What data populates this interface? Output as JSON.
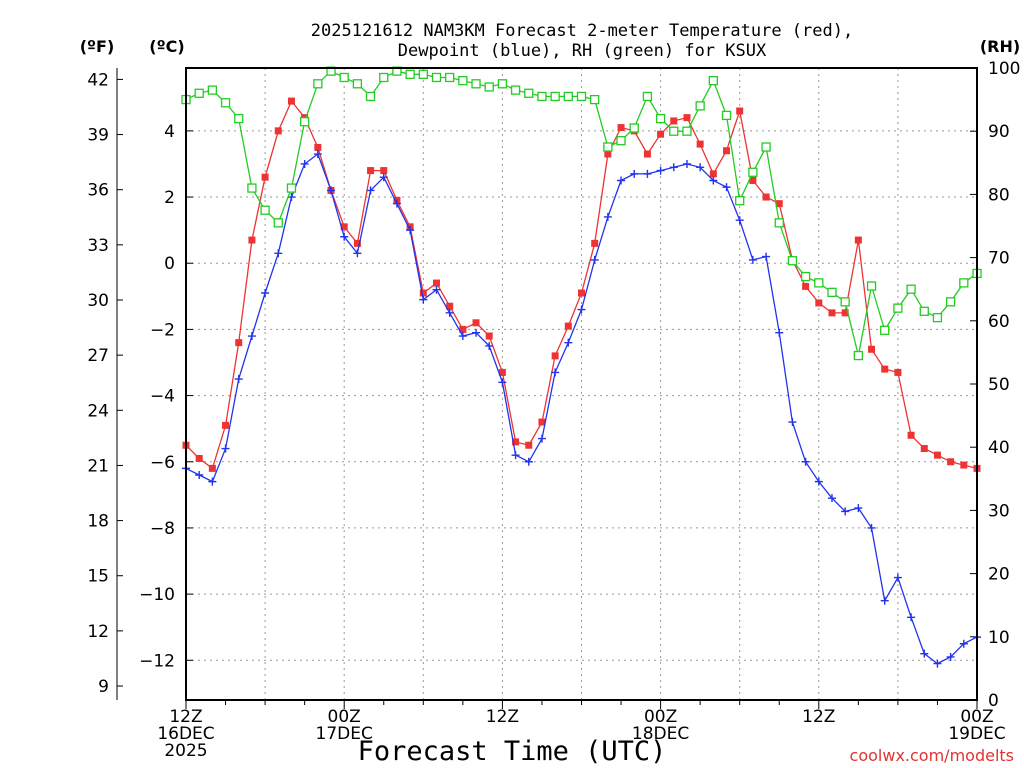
{
  "chart_data": {
    "type": "line",
    "title_line1": "2025121612 NAM3KM Forecast 2-meter Temperature (red),",
    "title_line2": "Dewpoint (blue), RH (green) for KSUX",
    "unit_f": "(ºF)",
    "unit_c": "(ºC)",
    "unit_rh": "(RH)",
    "xlabel": "Forecast Time (UTC)",
    "watermark": "coolwx.com/modelts",
    "x_range_hours": [
      0,
      60
    ],
    "y_celsius_range": [
      -13.2,
      5.9
    ],
    "y_rh_range": [
      0,
      100
    ],
    "x_ticks": [
      {
        "hour": 0,
        "line1": "12Z",
        "line2": "16DEC",
        "line3": "2025"
      },
      {
        "hour": 12,
        "line1": "00Z",
        "line2": "17DEC",
        "line3": ""
      },
      {
        "hour": 24,
        "line1": "12Z",
        "line2": "",
        "line3": ""
      },
      {
        "hour": 36,
        "line1": "00Z",
        "line2": "18DEC",
        "line3": ""
      },
      {
        "hour": 48,
        "line1": "12Z",
        "line2": "",
        "line3": ""
      },
      {
        "hour": 60,
        "line1": "00Z",
        "line2": "19DEC",
        "line3": ""
      }
    ],
    "celsius_ticks": [
      4,
      2,
      0,
      -2,
      -4,
      -6,
      -8,
      -10,
      -12
    ],
    "fahrenheit_ticks": [
      42,
      39,
      36,
      33,
      30,
      27,
      24,
      21,
      18,
      15,
      12,
      9
    ],
    "rh_ticks": [
      100,
      90,
      80,
      70,
      60,
      50,
      40,
      30,
      20,
      10,
      0
    ],
    "series": [
      {
        "name": "Temperature",
        "unit": "C",
        "color": "#ee3333",
        "marker": "filled-square",
        "hours": [
          0,
          1,
          2,
          3,
          4,
          5,
          6,
          7,
          8,
          9,
          10,
          11,
          12,
          13,
          14,
          15,
          16,
          17,
          18,
          19,
          20,
          21,
          22,
          23,
          24,
          25,
          26,
          27,
          28,
          29,
          30,
          31,
          32,
          33,
          34,
          35,
          36,
          37,
          38,
          39,
          40,
          41,
          42,
          43,
          44,
          45,
          46,
          47,
          48,
          49,
          50,
          51,
          52,
          53,
          54,
          55,
          56,
          57,
          58,
          59,
          60
        ],
        "values": [
          -5.5,
          -5.9,
          -6.2,
          -4.9,
          -2.4,
          0.7,
          2.6,
          4.0,
          4.9,
          4.4,
          3.5,
          2.2,
          1.1,
          0.6,
          2.8,
          2.8,
          1.9,
          1.1,
          -0.9,
          -0.6,
          -1.3,
          -2.0,
          -1.8,
          -2.2,
          -3.3,
          -5.4,
          -5.5,
          -4.8,
          -2.8,
          -1.9,
          -0.9,
          0.6,
          3.3,
          4.1,
          4.0,
          3.3,
          3.9,
          4.3,
          4.4,
          3.6,
          2.7,
          3.4,
          4.6,
          2.5,
          2.0,
          1.8,
          0.1,
          -0.7,
          -1.2,
          -1.5,
          -1.5,
          0.7,
          -2.6,
          -3.2,
          -3.3,
          -5.2,
          -5.6,
          -5.8,
          -6.0,
          -6.1,
          -6.2
        ]
      },
      {
        "name": "Dewpoint",
        "unit": "C",
        "color": "#2233ee",
        "marker": "plus",
        "hours": [
          0,
          1,
          2,
          3,
          4,
          5,
          6,
          7,
          8,
          9,
          10,
          11,
          12,
          13,
          14,
          15,
          16,
          17,
          18,
          19,
          20,
          21,
          22,
          23,
          24,
          25,
          26,
          27,
          28,
          29,
          30,
          31,
          32,
          33,
          34,
          35,
          36,
          37,
          38,
          39,
          40,
          41,
          42,
          43,
          44,
          45,
          46,
          47,
          48,
          49,
          50,
          51,
          52,
          53,
          54,
          55,
          56,
          57,
          58,
          59,
          60
        ],
        "values": [
          -6.2,
          -6.4,
          -6.6,
          -5.6,
          -3.5,
          -2.2,
          -0.9,
          0.3,
          2.0,
          3.0,
          3.3,
          2.2,
          0.8,
          0.3,
          2.2,
          2.6,
          1.8,
          1.0,
          -1.1,
          -0.8,
          -1.5,
          -2.2,
          -2.1,
          -2.5,
          -3.6,
          -5.8,
          -6.0,
          -5.3,
          -3.3,
          -2.4,
          -1.4,
          0.1,
          1.4,
          2.5,
          2.7,
          2.7,
          2.8,
          2.9,
          3.0,
          2.9,
          2.5,
          2.3,
          1.3,
          0.1,
          0.2,
          -2.1,
          -4.8,
          -6.0,
          -6.6,
          -7.1,
          -7.5,
          -7.4,
          -8.0,
          -10.2,
          -9.5,
          -10.7,
          -11.8,
          -12.1,
          -11.9,
          -11.5,
          -11.3
        ]
      },
      {
        "name": "RH",
        "unit": "%",
        "color": "#22cc22",
        "marker": "open-square",
        "hours": [
          0,
          1,
          2,
          3,
          4,
          5,
          6,
          7,
          8,
          9,
          10,
          11,
          12,
          13,
          14,
          15,
          16,
          17,
          18,
          19,
          20,
          21,
          22,
          23,
          24,
          25,
          26,
          27,
          28,
          29,
          30,
          31,
          32,
          33,
          34,
          35,
          36,
          37,
          38,
          39,
          40,
          41,
          42,
          43,
          44,
          45,
          46,
          47,
          48,
          49,
          50,
          51,
          52,
          53,
          54,
          55,
          56,
          57,
          58,
          59,
          60
        ],
        "values": [
          95,
          96,
          96.5,
          94.5,
          92,
          81,
          77.5,
          75.5,
          81,
          91.5,
          97.5,
          99.5,
          98.5,
          97.5,
          95.5,
          98.5,
          99.5,
          99,
          99,
          98.5,
          98.5,
          98,
          97.5,
          97,
          97.5,
          96.5,
          96,
          95.5,
          95.5,
          95.5,
          95.5,
          95,
          87.5,
          88.5,
          90.5,
          95.5,
          92,
          90,
          90,
          94,
          98,
          92.5,
          79,
          83.5,
          87.5,
          75.5,
          69.5,
          67,
          66,
          64.5,
          63,
          54.5,
          65.5,
          58.5,
          62,
          65,
          61.5,
          60.5,
          63,
          66,
          67.5
        ]
      }
    ]
  }
}
